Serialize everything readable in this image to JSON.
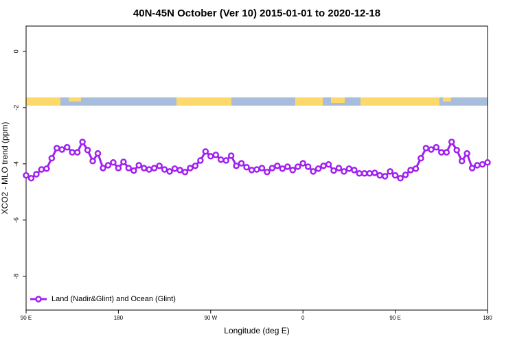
{
  "chart_data": {
    "type": "line",
    "title": "40N-45N October (Ver 10)   2015-01-01 to 2020-12-18",
    "x_label": "Longitude (deg E)",
    "y_label": "XCO2 - MLO trend (ppm)",
    "xlim": [
      90,
      540
    ],
    "ylim": [
      -9.2,
      0.9
    ],
    "xticks": [
      {
        "value": 90,
        "label": "90 E"
      },
      {
        "value": 180,
        "label": "180"
      },
      {
        "value": 270,
        "label": "90 W"
      },
      {
        "value": 360,
        "label": "0"
      },
      {
        "value": 450,
        "label": "90 E"
      },
      {
        "value": 540,
        "label": "180"
      }
    ],
    "yticks": [
      -8,
      -6,
      -4,
      -2,
      0
    ],
    "legend_position": "lower left",
    "x": [
      90,
      95,
      100,
      105,
      110,
      115,
      120,
      125,
      130,
      135,
      140,
      145,
      150,
      155,
      160,
      165,
      170,
      175,
      180,
      185,
      190,
      195,
      200,
      205,
      210,
      215,
      220,
      225,
      230,
      235,
      240,
      245,
      250,
      255,
      260,
      265,
      270,
      275,
      280,
      285,
      290,
      295,
      300,
      305,
      310,
      315,
      320,
      325,
      330,
      335,
      340,
      345,
      350,
      355,
      360,
      365,
      370,
      375,
      380,
      385,
      390,
      395,
      400,
      405,
      410,
      415,
      420,
      425,
      430,
      435,
      440,
      445,
      450,
      455,
      460,
      465,
      470,
      475,
      480,
      485,
      490,
      495,
      500,
      505,
      510,
      515,
      520,
      525,
      530,
      535,
      540
    ],
    "series": [
      {
        "name": "Land (Nadir&Glint) and Ocean (Glint)",
        "color": "#a020f0",
        "values": [
          -4.41,
          -4.51,
          -4.37,
          -4.2,
          -4.17,
          -3.8,
          -3.44,
          -3.49,
          -3.41,
          -3.59,
          -3.59,
          -3.22,
          -3.51,
          -3.9,
          -3.63,
          -4.15,
          -4.05,
          -3.95,
          -4.15,
          -3.93,
          -4.15,
          -4.24,
          -4.05,
          -4.15,
          -4.2,
          -4.15,
          -4.07,
          -4.2,
          -4.27,
          -4.17,
          -4.22,
          -4.29,
          -4.15,
          -4.07,
          -3.88,
          -3.56,
          -3.73,
          -3.68,
          -3.85,
          -3.88,
          -3.71,
          -4.07,
          -3.98,
          -4.12,
          -4.22,
          -4.2,
          -4.15,
          -4.29,
          -4.15,
          -4.07,
          -4.17,
          -4.1,
          -4.22,
          -4.1,
          -3.98,
          -4.1,
          -4.27,
          -4.17,
          -4.07,
          -4.02,
          -4.24,
          -4.15,
          -4.27,
          -4.17,
          -4.22,
          -4.34,
          -4.34,
          -4.34,
          -4.32,
          -4.41,
          -4.44,
          -4.27,
          -4.41,
          -4.51,
          -4.39,
          -4.22,
          -4.17,
          -3.8,
          -3.44,
          -3.49,
          -3.41,
          -3.59,
          -3.59,
          -3.22,
          -3.51,
          -3.9,
          -3.63,
          -4.15,
          -4.05,
          -4.02,
          -3.95
        ]
      }
    ]
  }
}
